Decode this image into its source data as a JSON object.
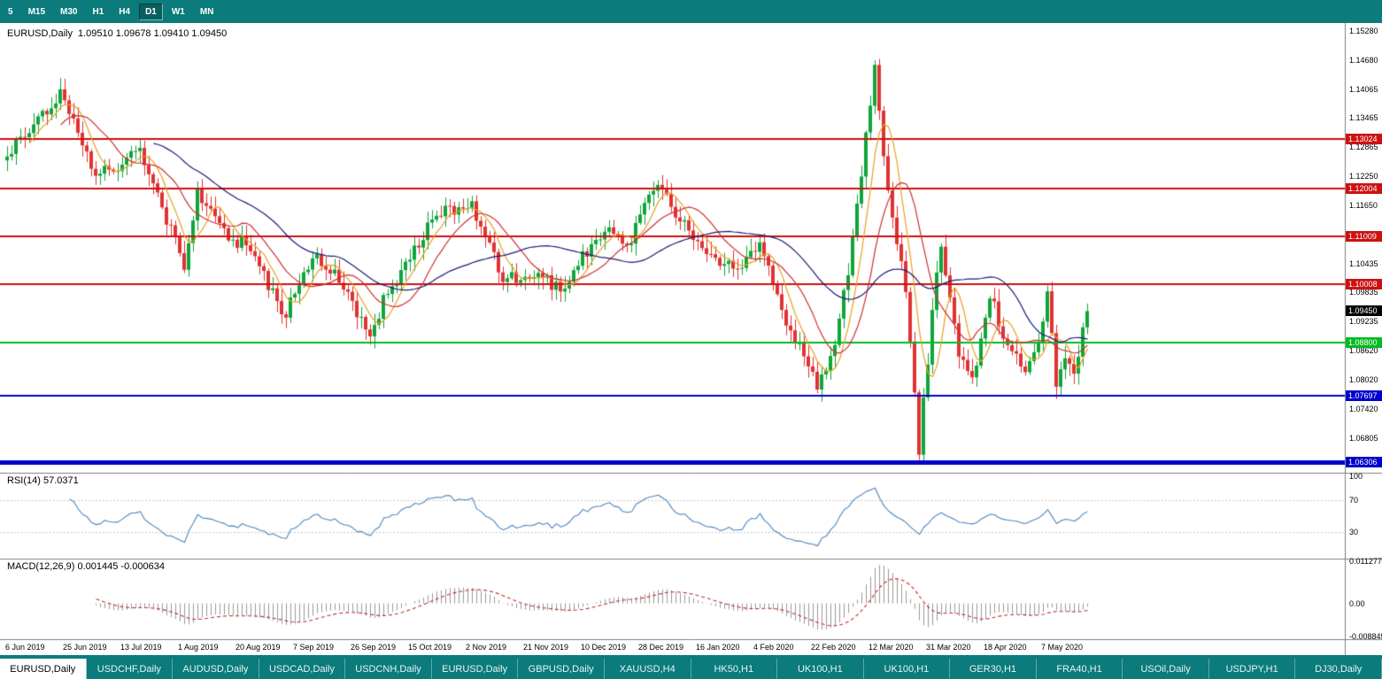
{
  "toolbar": {
    "timeframes": [
      "5",
      "M15",
      "M30",
      "H1",
      "H4",
      "D1",
      "W1",
      "MN"
    ],
    "active_timeframe": "D1"
  },
  "chart": {
    "symbol_label": "EURUSD,Daily",
    "ohlc_label": "1.09510 1.09678 1.09410 1.09450",
    "current_price_label": "1.09450",
    "y_ticks": [
      "1.15280",
      "1.14680",
      "1.14065",
      "1.13465",
      "1.12865",
      "1.12250",
      "1.11650",
      "1.11035",
      "1.10435",
      "1.09835",
      "1.09235",
      "1.08620",
      "1.08020",
      "1.07420",
      "1.06805"
    ],
    "x_labels": [
      "6 Jun 2019",
      "25 Jun 2019",
      "13 Jul 2019",
      "1 Aug 2019",
      "20 Aug 2019",
      "7 Sep 2019",
      "26 Sep 2019",
      "15 Oct 2019",
      "2 Nov 2019",
      "21 Nov 2019",
      "10 Dec 2019",
      "28 Dec 2019",
      "16 Jan 2020",
      "4 Feb 2020",
      "22 Feb 2020",
      "12 Mar 2020",
      "31 Mar 2020",
      "18 Apr 2020",
      "7 May 2020"
    ],
    "hlines": [
      {
        "value": 1.13024,
        "label": "1.13024",
        "color": "#cc1111",
        "width": 2
      },
      {
        "value": 1.12004,
        "label": "1.12004",
        "color": "#cc1111",
        "width": 2
      },
      {
        "value": 1.11009,
        "label": "1.11009",
        "color": "#cc1111",
        "width": 2
      },
      {
        "value": 1.10008,
        "label": "1.10008",
        "color": "#cc1111",
        "width": 2
      },
      {
        "value": 1.088,
        "label": "1.08800",
        "color": "#00bb22",
        "width": 2
      },
      {
        "value": 1.07697,
        "label": "1.07697",
        "color": "#0000cc",
        "width": 2
      },
      {
        "value": 1.06306,
        "label": "1.06306",
        "color": "#0000cc",
        "width": 5
      }
    ]
  },
  "rsi_panel": {
    "label": "RSI(14) 57.0371",
    "ticks": [
      {
        "v": 100,
        "label": "100"
      },
      {
        "v": 70,
        "label": "70"
      },
      {
        "v": 30,
        "label": "30"
      }
    ],
    "levels": [
      70,
      30
    ]
  },
  "macd_panel": {
    "label": "MACD(12,26,9) 0.001445 -0.000634",
    "ticks": [
      {
        "v": 0.011277,
        "label": "0.011277"
      },
      {
        "v": 0,
        "label": "0.00"
      },
      {
        "v": -0.008845,
        "label": "-0.008845"
      }
    ]
  },
  "tabs": [
    "EURUSD,Daily",
    "USDCHF,Daily",
    "AUDUSD,Daily",
    "USDCAD,Daily",
    "USDCNH,Daily",
    "EURUSD,Daily",
    "GBPUSD,Daily",
    "XAUUSD,H4",
    "HK50,H1",
    "UK100,H1",
    "UK100,H1",
    "GER30,H1",
    "FRA40,H1",
    "USOil,Daily",
    "USDJPY,H1",
    "DJ30,Daily"
  ],
  "active_tab_index": 0,
  "colors": {
    "teal": "#0b7b7b",
    "candle_up": "#10a53a",
    "candle_down": "#e03232",
    "rsi_line": "#4e86c0",
    "macd_hist": "#9a9a9a",
    "macd_signal": "#c03030",
    "separator": "#808080",
    "level_dotted": "#c8c8c8"
  },
  "chart_data": {
    "type": "candlestick",
    "symbol": "EURUSD",
    "timeframe": "Daily",
    "ohlc_current": {
      "open": 1.0951,
      "high": 1.09678,
      "low": 1.0941,
      "close": 1.0945
    },
    "num_candles": 245,
    "close_anchors": [
      [
        0,
        1.127
      ],
      [
        12,
        1.14
      ],
      [
        20,
        1.1225
      ],
      [
        30,
        1.1275
      ],
      [
        40,
        1.104
      ],
      [
        43,
        1.1195
      ],
      [
        50,
        1.1095
      ],
      [
        55,
        1.108
      ],
      [
        60,
        1.098
      ],
      [
        62,
        1.0925
      ],
      [
        69,
        1.1065
      ],
      [
        75,
        1.1015
      ],
      [
        82,
        1.089
      ],
      [
        85,
        1.0965
      ],
      [
        90,
        1.104
      ],
      [
        97,
        1.115
      ],
      [
        105,
        1.1165
      ],
      [
        112,
        1.101
      ],
      [
        120,
        1.102
      ],
      [
        125,
        1.0985
      ],
      [
        130,
        1.106
      ],
      [
        135,
        1.112
      ],
      [
        140,
        1.1075
      ],
      [
        147,
        1.122
      ],
      [
        150,
        1.116
      ],
      [
        155,
        1.1095
      ],
      [
        165,
        1.1025
      ],
      [
        170,
        1.109
      ],
      [
        175,
        1.0945
      ],
      [
        183,
        1.079
      ],
      [
        187,
        1.088
      ],
      [
        190,
        1.1025
      ],
      [
        196,
        1.145
      ],
      [
        199,
        1.1185
      ],
      [
        201,
        1.108
      ],
      [
        203,
        1.0995
      ],
      [
        206,
        1.066
      ],
      [
        210,
        1.103
      ],
      [
        211,
        1.109
      ],
      [
        215,
        1.0855
      ],
      [
        218,
        1.0795
      ],
      [
        222,
        1.098
      ],
      [
        226,
        1.0865
      ],
      [
        230,
        1.0825
      ],
      [
        233,
        1.0875
      ],
      [
        235,
        1.098
      ],
      [
        237,
        1.08
      ],
      [
        239,
        1.084
      ],
      [
        241,
        1.0815
      ],
      [
        244,
        1.0945
      ]
    ],
    "price_axis": {
      "top": 1.15408,
      "bottom": 1.06141
    },
    "moving_averages": [
      {
        "name": "ma-fast",
        "period": 6,
        "color": "#e8a020"
      },
      {
        "name": "ma-mid",
        "period": 13,
        "color": "#d03030"
      },
      {
        "name": "ma-slow",
        "period": 34,
        "color": "#1c1c78"
      }
    ],
    "rsi": {
      "period": 14,
      "last": 57.0371,
      "range": [
        0,
        100
      ]
    },
    "macd": {
      "fast": 12,
      "slow": 26,
      "signal": 9,
      "last": 0.001445,
      "signal_last": -0.000634,
      "range": [
        -0.0089,
        0.0113
      ]
    }
  }
}
